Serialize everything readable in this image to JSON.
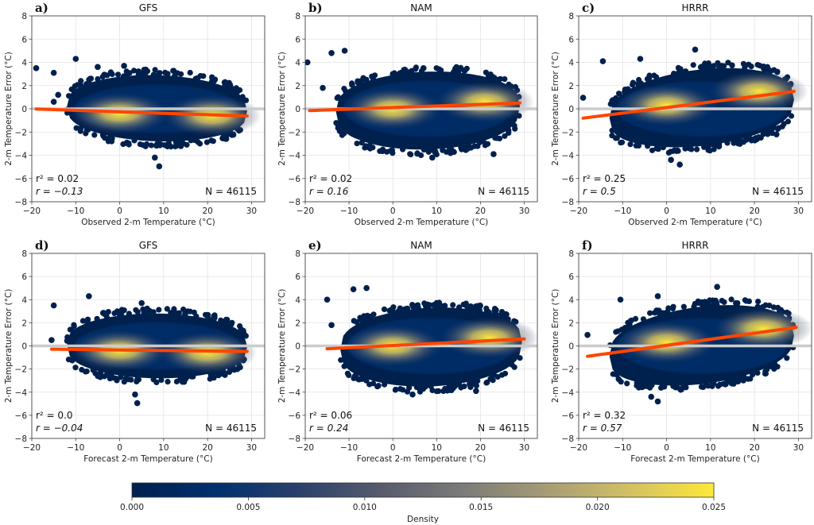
{
  "chart_data": {
    "type": "scatter",
    "description": "Density-colored scatter plots of 2-m temperature error vs temperature with linear fit",
    "colormap": {
      "name": "cividis",
      "label": "Density",
      "range": [
        0.0,
        0.025
      ],
      "ticks": [
        "0.000",
        "0.005",
        "0.010",
        "0.015",
        "0.020",
        "0.025"
      ],
      "stops": [
        "#00204d",
        "#00306f",
        "#2a406c",
        "#575c6d",
        "#7c7b78",
        "#a69d75",
        "#d3c164",
        "#fee838"
      ]
    },
    "zero_line_color": "#cccccc",
    "fit_line_color": "#ff4500",
    "point_color": "#00204d",
    "panels": [
      {
        "label": "a)",
        "title": "GFS",
        "xlabel": "Observed 2-m Temperature (°C)",
        "ylabel": "2-m Temperature Error (°C)",
        "xlim": [
          -20,
          33
        ],
        "ylim": [
          -8,
          8
        ],
        "xticks": [
          -20,
          -10,
          0,
          10,
          20,
          30
        ],
        "yticks": [
          -8,
          -6,
          -4,
          -2,
          0,
          2,
          4,
          6,
          8
        ],
        "r2": "r² = 0.02",
        "r": "r = −0.13",
        "N": "N = 46115",
        "fit": {
          "x": [
            -19,
            29
          ],
          "y": [
            -0.02,
            -0.62
          ]
        },
        "cloud": {
          "xmin": -12,
          "xmax": 29,
          "ymin": -3.1,
          "ymax": 3.2
        },
        "density_peaks": [
          {
            "x": 0,
            "y": -0.4
          },
          {
            "x": 21,
            "y": -0.6
          }
        ],
        "outliers": [
          [
            -19,
            3.5
          ],
          [
            -10,
            4.3
          ],
          [
            -15,
            3.1
          ],
          [
            -5,
            3.6
          ],
          [
            1,
            3.7
          ],
          [
            9,
            -4.95
          ],
          [
            8,
            -4.2
          ],
          [
            -15,
            0.6
          ],
          [
            -14,
            1.2
          ]
        ]
      },
      {
        "label": "b)",
        "title": "NAM",
        "xlabel": "Observed 2-m Temperature (°C)",
        "ylabel": "2-m Temperature Error (°C)",
        "xlim": [
          -20,
          33
        ],
        "ylim": [
          -8,
          8
        ],
        "xticks": [
          -20,
          -10,
          0,
          10,
          20,
          30
        ],
        "yticks": [
          -8,
          -6,
          -4,
          -2,
          0,
          2,
          4,
          6,
          8
        ],
        "r2": "r² = 0.02",
        "r": "r = 0.16",
        "N": "N = 46115",
        "fit": {
          "x": [
            -19,
            29
          ],
          "y": [
            -0.15,
            0.5
          ]
        },
        "cloud": {
          "xmin": -13,
          "xmax": 29,
          "ymin": -3.8,
          "ymax": 3.5
        },
        "density_peaks": [
          {
            "x": 0,
            "y": 0.0
          },
          {
            "x": 21,
            "y": 0.6
          }
        ],
        "outliers": [
          [
            -19.5,
            4.0
          ],
          [
            -11,
            5.0
          ],
          [
            -14,
            4.8
          ],
          [
            -16,
            1.8
          ],
          [
            9,
            -4.2
          ],
          [
            23,
            -3.9
          ],
          [
            7,
            3.5
          ]
        ]
      },
      {
        "label": "c)",
        "title": "HRRR",
        "xlabel": "Observed 2-m Temperature (°C)",
        "ylabel": "2-m Temperature Error (°C)",
        "xlim": [
          -20,
          33
        ],
        "ylim": [
          -8,
          8
        ],
        "xticks": [
          -20,
          -10,
          0,
          10,
          20,
          30
        ],
        "yticks": [
          -8,
          -6,
          -4,
          -2,
          0,
          2,
          4,
          6,
          8
        ],
        "r2": "r² = 0.25",
        "r": "r = 0.5",
        "N": "N = 46115",
        "fit": {
          "x": [
            -19,
            29
          ],
          "y": [
            -0.8,
            1.5
          ]
        },
        "cloud": {
          "xmin": -13,
          "xmax": 29,
          "ymin": -3.5,
          "ymax": 3.7
        },
        "density_peaks": [
          {
            "x": 0,
            "y": 0.3
          },
          {
            "x": 21,
            "y": 1.5
          }
        ],
        "outliers": [
          [
            -19,
            0.95
          ],
          [
            6.5,
            5.1
          ],
          [
            3,
            -4.8
          ],
          [
            1,
            -4.4
          ],
          [
            -14.5,
            4.1
          ],
          [
            -6,
            4.3
          ],
          [
            25,
            -2.2
          ]
        ]
      },
      {
        "label": "d)",
        "title": "GFS",
        "xlabel": "Forecast 2-m Temperature (°C)",
        "ylabel": "2-m Temperature Error (°C)",
        "xlim": [
          -20,
          33
        ],
        "ylim": [
          -8,
          8
        ],
        "xticks": [
          -20,
          -10,
          0,
          10,
          20,
          30
        ],
        "yticks": [
          -8,
          -6,
          -4,
          -2,
          0,
          2,
          4,
          6,
          8
        ],
        "r2": "r² = 0.0",
        "r": "r = −0.04",
        "N": "N = 46115",
        "fit": {
          "x": [
            -15.5,
            29
          ],
          "y": [
            -0.28,
            -0.48
          ]
        },
        "cloud": {
          "xmin": -12,
          "xmax": 29,
          "ymin": -3.1,
          "ymax": 3.1
        },
        "density_peaks": [
          {
            "x": 0,
            "y": -0.4
          },
          {
            "x": 20,
            "y": -0.6
          }
        ],
        "outliers": [
          [
            -15,
            3.5
          ],
          [
            -7,
            4.3
          ],
          [
            4,
            -4.95
          ],
          [
            3.5,
            -4.2
          ],
          [
            -15.5,
            0.5
          ],
          [
            5,
            3.7
          ]
        ]
      },
      {
        "label": "e)",
        "title": "NAM",
        "xlabel": "Forecast 2-m Temperature (°C)",
        "ylabel": "2-m Temperature Error (°C)",
        "xlim": [
          -20,
          33
        ],
        "ylim": [
          -8,
          8
        ],
        "xticks": [
          -20,
          -10,
          0,
          10,
          20,
          30
        ],
        "yticks": [
          -8,
          -6,
          -4,
          -2,
          0,
          2,
          4,
          6,
          8
        ],
        "r2": "r² = 0.06",
        "r": "r = 0.24",
        "N": "N = 46115",
        "fit": {
          "x": [
            -15,
            30
          ],
          "y": [
            -0.25,
            0.6
          ]
        },
        "cloud": {
          "xmin": -12,
          "xmax": 29.5,
          "ymin": -3.8,
          "ymax": 3.6
        },
        "density_peaks": [
          {
            "x": 0,
            "y": 0.0
          },
          {
            "x": 22,
            "y": 0.7
          }
        ],
        "outliers": [
          [
            -15,
            4.0
          ],
          [
            -6,
            5.0
          ],
          [
            -9,
            4.9
          ],
          [
            -14,
            1.8
          ],
          [
            4.5,
            -4.2
          ],
          [
            19,
            -3.9
          ],
          [
            10,
            3.5
          ]
        ]
      },
      {
        "label": "f)",
        "title": "HRRR",
        "xlabel": "Forecast 2-m Temperature (°C)",
        "ylabel": "2-m Temperature Error (°C)",
        "xlim": [
          -20,
          33
        ],
        "ylim": [
          -8,
          8
        ],
        "xticks": [
          -20,
          -10,
          0,
          10,
          20,
          30
        ],
        "yticks": [
          -8,
          -6,
          -4,
          -2,
          0,
          2,
          4,
          6,
          8
        ],
        "r2": "r² = 0.32",
        "r": "r = 0.57",
        "N": "N = 46115",
        "fit": {
          "x": [
            -18,
            29.5
          ],
          "y": [
            -0.9,
            1.6
          ]
        },
        "cloud": {
          "xmin": -13,
          "xmax": 29,
          "ymin": -3.6,
          "ymax": 3.7
        },
        "density_peaks": [
          {
            "x": 0,
            "y": 0.3
          },
          {
            "x": 22,
            "y": 1.5
          }
        ],
        "outliers": [
          [
            -18,
            0.95
          ],
          [
            11.5,
            5.1
          ],
          [
            -2,
            -4.8
          ],
          [
            -3.5,
            -4.4
          ],
          [
            -10.5,
            4.0
          ],
          [
            -2,
            4.3
          ],
          [
            22.5,
            -2.2
          ]
        ]
      }
    ]
  }
}
